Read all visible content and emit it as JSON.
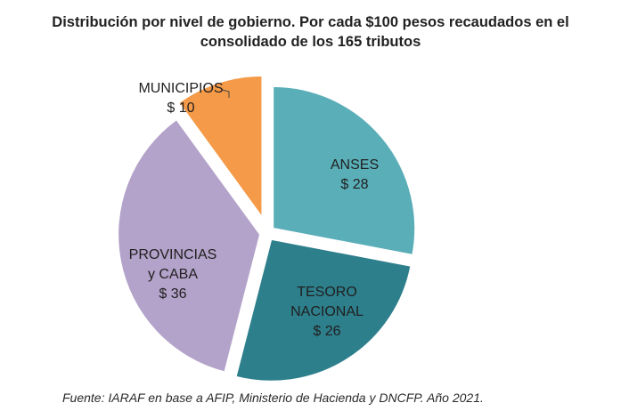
{
  "chart_data": {
    "type": "pie",
    "title_line1": "Distribución por nivel de gobierno. Por cada $100 pesos recaudados en el",
    "title_line2": "consolidado de los 165 tributos",
    "slices": [
      {
        "name_lines": [
          "ANSES"
        ],
        "value_label": "$ 28",
        "value": 28,
        "color": "#5aaeb8"
      },
      {
        "name_lines": [
          "TESORO",
          "NACIONAL"
        ],
        "value_label": "$ 26",
        "value": 26,
        "color": "#2e7f8c"
      },
      {
        "name_lines": [
          "PROVINCIAS",
          "y CABA"
        ],
        "value_label": "$ 36",
        "value": 36,
        "color": "#b3a2c9"
      },
      {
        "name_lines": [
          "MUNICIPIOS"
        ],
        "value_label": "$ 10",
        "value": 10,
        "color": "#f49a48"
      }
    ],
    "exploded": [
      "MUNICIPIOS"
    ],
    "source": "Fuente: IARAF en base a AFIP, Ministerio de Hacienda y DNCFP. Año 2021."
  }
}
